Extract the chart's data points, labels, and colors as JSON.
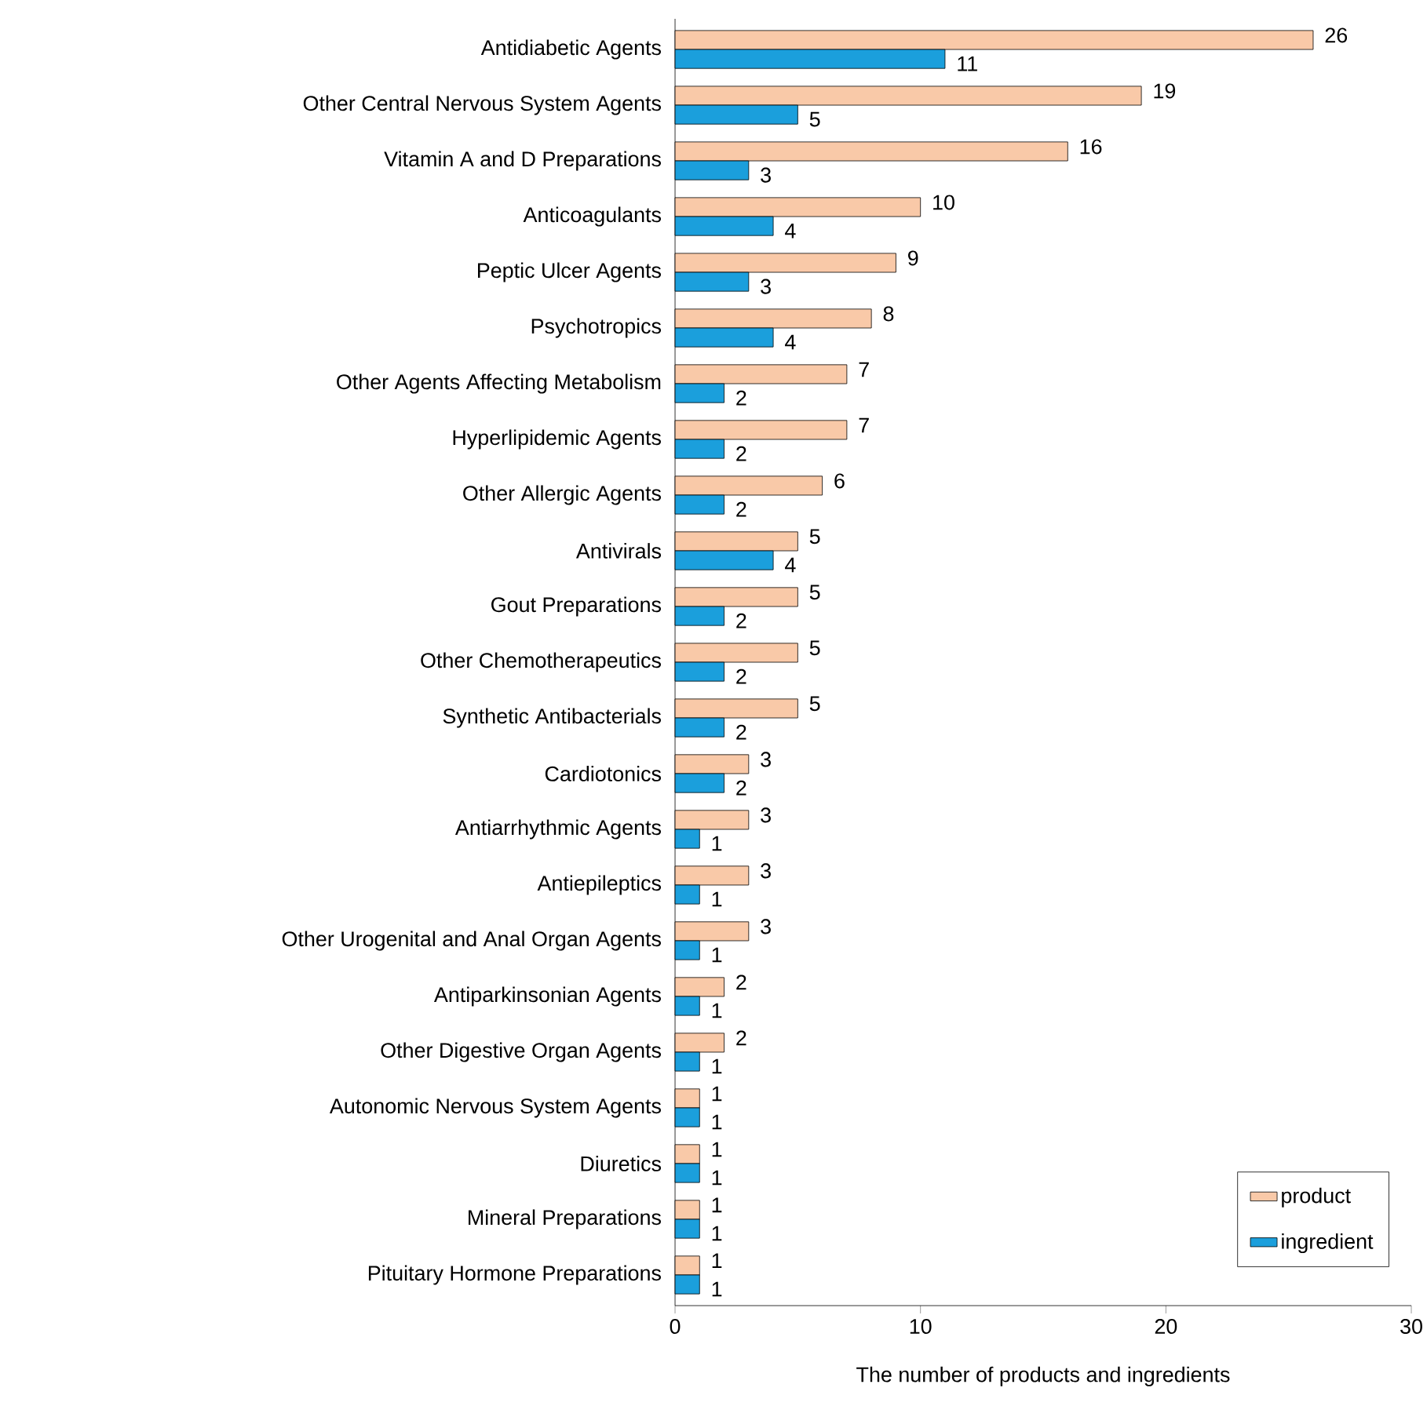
{
  "chart_data": {
    "type": "bar",
    "orientation": "horizontal",
    "xlabel": "The number of products and ingredients",
    "categories": [
      "Antidiabetic Agents",
      "Other Central Nervous System Agents",
      "Vitamin A and D Preparations",
      "Anticoagulants",
      "Peptic Ulcer Agents",
      "Psychotropics",
      "Other Agents Affecting Metabolism",
      "Hyperlipidemic Agents",
      "Other Allergic Agents",
      "Antivirals",
      "Gout Preparations",
      "Other Chemotherapeutics",
      "Synthetic Antibacterials",
      "Cardiotonics",
      "Antiarrhythmic Agents",
      "Antiepileptics",
      "Other Urogenital and Anal Organ Agents",
      "Antiparkinsonian Agents",
      "Other Digestive Organ Agents",
      "Autonomic Nervous System Agents",
      "Diuretics",
      "Mineral Preparations",
      "Pituitary Hormone Preparations"
    ],
    "series": [
      {
        "name": "product",
        "color": "#f9c9a8",
        "values": [
          26,
          19,
          16,
          10,
          9,
          8,
          7,
          7,
          6,
          5,
          5,
          5,
          5,
          3,
          3,
          3,
          3,
          2,
          2,
          1,
          1,
          1,
          1
        ]
      },
      {
        "name": "ingredient",
        "color": "#1b9fdc",
        "values": [
          11,
          5,
          3,
          4,
          3,
          4,
          2,
          2,
          2,
          4,
          2,
          2,
          2,
          2,
          1,
          1,
          1,
          1,
          1,
          1,
          1,
          1,
          1
        ]
      }
    ],
    "xlim": [
      0,
      30
    ],
    "xticks": [
      0,
      10,
      20,
      30
    ],
    "data_labels": true,
    "legend": "bottom right",
    "grid": false
  }
}
